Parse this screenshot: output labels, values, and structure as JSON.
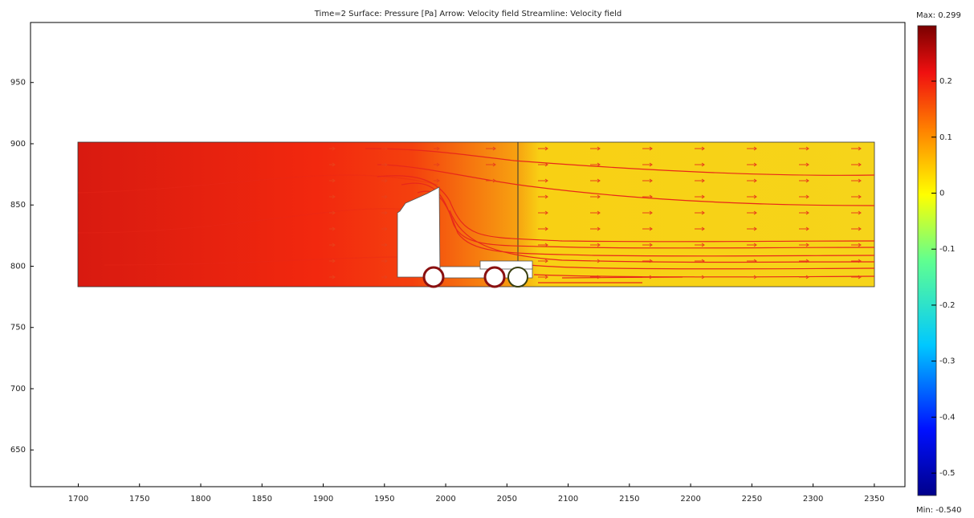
{
  "chart_data": {
    "type": "field",
    "title": "Time=2    Surface: Pressure [Pa]   Arrow: Velocity field   Streamline: Velocity field",
    "xlim": [
      1661,
      2375
    ],
    "ylim": [
      620,
      999
    ],
    "xticks": [
      1700,
      1750,
      1800,
      1850,
      1900,
      1950,
      2000,
      2050,
      2100,
      2150,
      2200,
      2250,
      2300,
      2350
    ],
    "yticks": [
      650,
      700,
      750,
      800,
      850,
      900,
      950
    ],
    "colorbar": {
      "max_label": "Max: 0.299",
      "min_label": "Min: -0.540",
      "lim": [
        -0.54,
        0.299
      ],
      "ticks": [
        -0.5,
        -0.4,
        -0.3,
        -0.2,
        -0.1,
        0,
        0.1,
        0.2
      ]
    }
  }
}
